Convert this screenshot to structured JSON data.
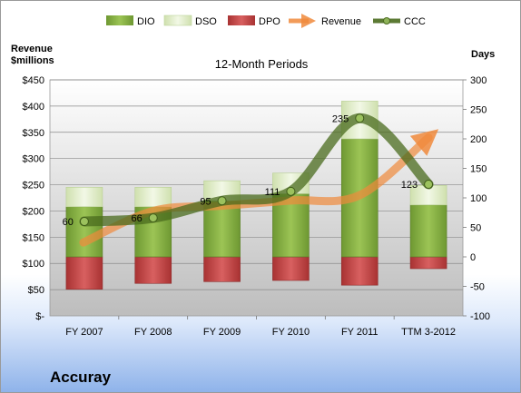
{
  "chart_data": {
    "type": "bar",
    "title": "12-Month Periods",
    "company": "Accuray",
    "left_axis_label": [
      "Revenue",
      "$millions"
    ],
    "right_axis_label": "Days",
    "categories": [
      "FY 2007",
      "FY 2008",
      "FY 2009",
      "FY 2010",
      "FY 2011",
      "TTM 3-2012"
    ],
    "left_ticks": [
      "$-",
      "$50",
      "$100",
      "$150",
      "$200",
      "$250",
      "$300",
      "$350",
      "$400",
      "$450"
    ],
    "right_ticks": [
      "-100",
      "-50",
      "0",
      "50",
      "100",
      "150",
      "200",
      "250",
      "300"
    ],
    "left_range": [
      0,
      450
    ],
    "right_range": [
      -100,
      300
    ],
    "series": [
      {
        "name": "DIO",
        "color": "#7aa33a",
        "base": [
          0,
          0,
          0,
          0,
          0,
          0
        ],
        "values": [
          85,
          85,
          95,
          107,
          200,
          88
        ]
      },
      {
        "name": "DSO",
        "color": "#dfecc8",
        "base": [
          85,
          85,
          95,
          107,
          200,
          88
        ],
        "values": [
          33,
          33,
          34,
          35,
          64,
          33
        ]
      },
      {
        "name": "DPO",
        "color": "#c24545",
        "values": [
          -55,
          -45,
          -42,
          -40,
          -48,
          -20
        ]
      },
      {
        "name": "Revenue",
        "color": "#f08a3c",
        "values": [
          140,
          200,
          210,
          220,
          230,
          340
        ]
      },
      {
        "name": "CCC",
        "color": "#4a6b1e",
        "values": [
          60,
          66,
          95,
          111,
          235,
          123
        ]
      }
    ],
    "ccc_labels": [
      "60",
      "66",
      "95",
      "111",
      "235",
      "123"
    ],
    "grid": true,
    "legend_position": "top"
  }
}
